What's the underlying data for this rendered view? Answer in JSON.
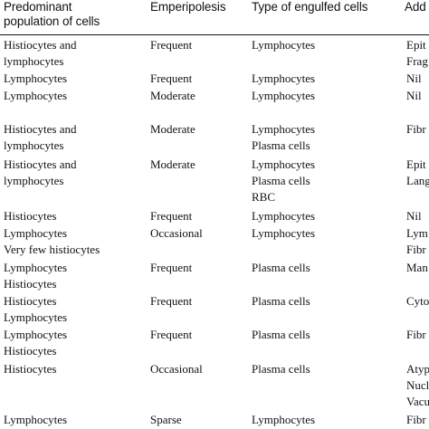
{
  "table": {
    "headers": [
      [
        "Predominant",
        "population of cells"
      ],
      [
        "Emperipolesis"
      ],
      [
        "Type of engulfed cells"
      ],
      [
        "Add"
      ]
    ],
    "rows": [
      {
        "cells": [
          [
            "Histiocytes and",
            "lymphocytes"
          ],
          [
            "Frequent"
          ],
          [
            "Lymphocytes"
          ],
          [
            "Epit",
            "Frag"
          ]
        ]
      },
      {
        "cells": [
          [
            "Lymphocytes"
          ],
          [
            "Frequent"
          ],
          [
            "Lymphocytes"
          ],
          [
            "Nil"
          ]
        ]
      },
      {
        "cells": [
          [
            "Lymphocytes"
          ],
          [
            "Moderate"
          ],
          [
            "Lymphocytes"
          ],
          [
            "Nil"
          ]
        ]
      },
      {
        "cells": [
          [
            "Histiocytes and",
            "lymphocytes"
          ],
          [
            "Moderate"
          ],
          [
            "Lymphocytes",
            "Plasma cells"
          ],
          [
            "Fibr"
          ]
        ]
      },
      {
        "cells": [
          [
            "Histiocytes and",
            "lymphocytes"
          ],
          [
            "Moderate"
          ],
          [
            "Lymphocytes",
            "Plasma cells",
            "RBC"
          ],
          [
            "Epit",
            "Lang"
          ]
        ]
      },
      {
        "cells": [
          [
            "Histiocytes"
          ],
          [
            "Frequent"
          ],
          [
            "Lymphocytes"
          ],
          [
            "Nil"
          ]
        ]
      },
      {
        "cells": [
          [
            "Lymphocytes",
            "Very few histiocytes"
          ],
          [
            "Occasional"
          ],
          [
            "Lymphocytes"
          ],
          [
            "Lym",
            "Fibr"
          ]
        ]
      },
      {
        "cells": [
          [
            "Lymphocytes",
            "Histiocytes"
          ],
          [
            "Frequent"
          ],
          [
            "Plasma cells"
          ],
          [
            "Man"
          ]
        ]
      },
      {
        "cells": [
          [
            "Histiocytes",
            "Lymphocytes"
          ],
          [
            "Frequent"
          ],
          [
            "Plasma cells"
          ],
          [
            "Cyto"
          ]
        ]
      },
      {
        "cells": [
          [
            "Lymphocytes",
            "Histiocytes"
          ],
          [
            "Frequent"
          ],
          [
            "Plasma cells"
          ],
          [
            "Fibr"
          ]
        ]
      },
      {
        "cells": [
          [
            "Histiocytes"
          ],
          [
            "Occasional"
          ],
          [
            "Plasma cells"
          ],
          [
            "Atyp",
            "Nucl",
            "Vacu"
          ]
        ]
      },
      {
        "cells": [
          [
            "Lymphocytes"
          ],
          [
            "Sparse"
          ],
          [
            "Lymphocytes"
          ],
          [
            "Fibr"
          ]
        ]
      }
    ]
  }
}
